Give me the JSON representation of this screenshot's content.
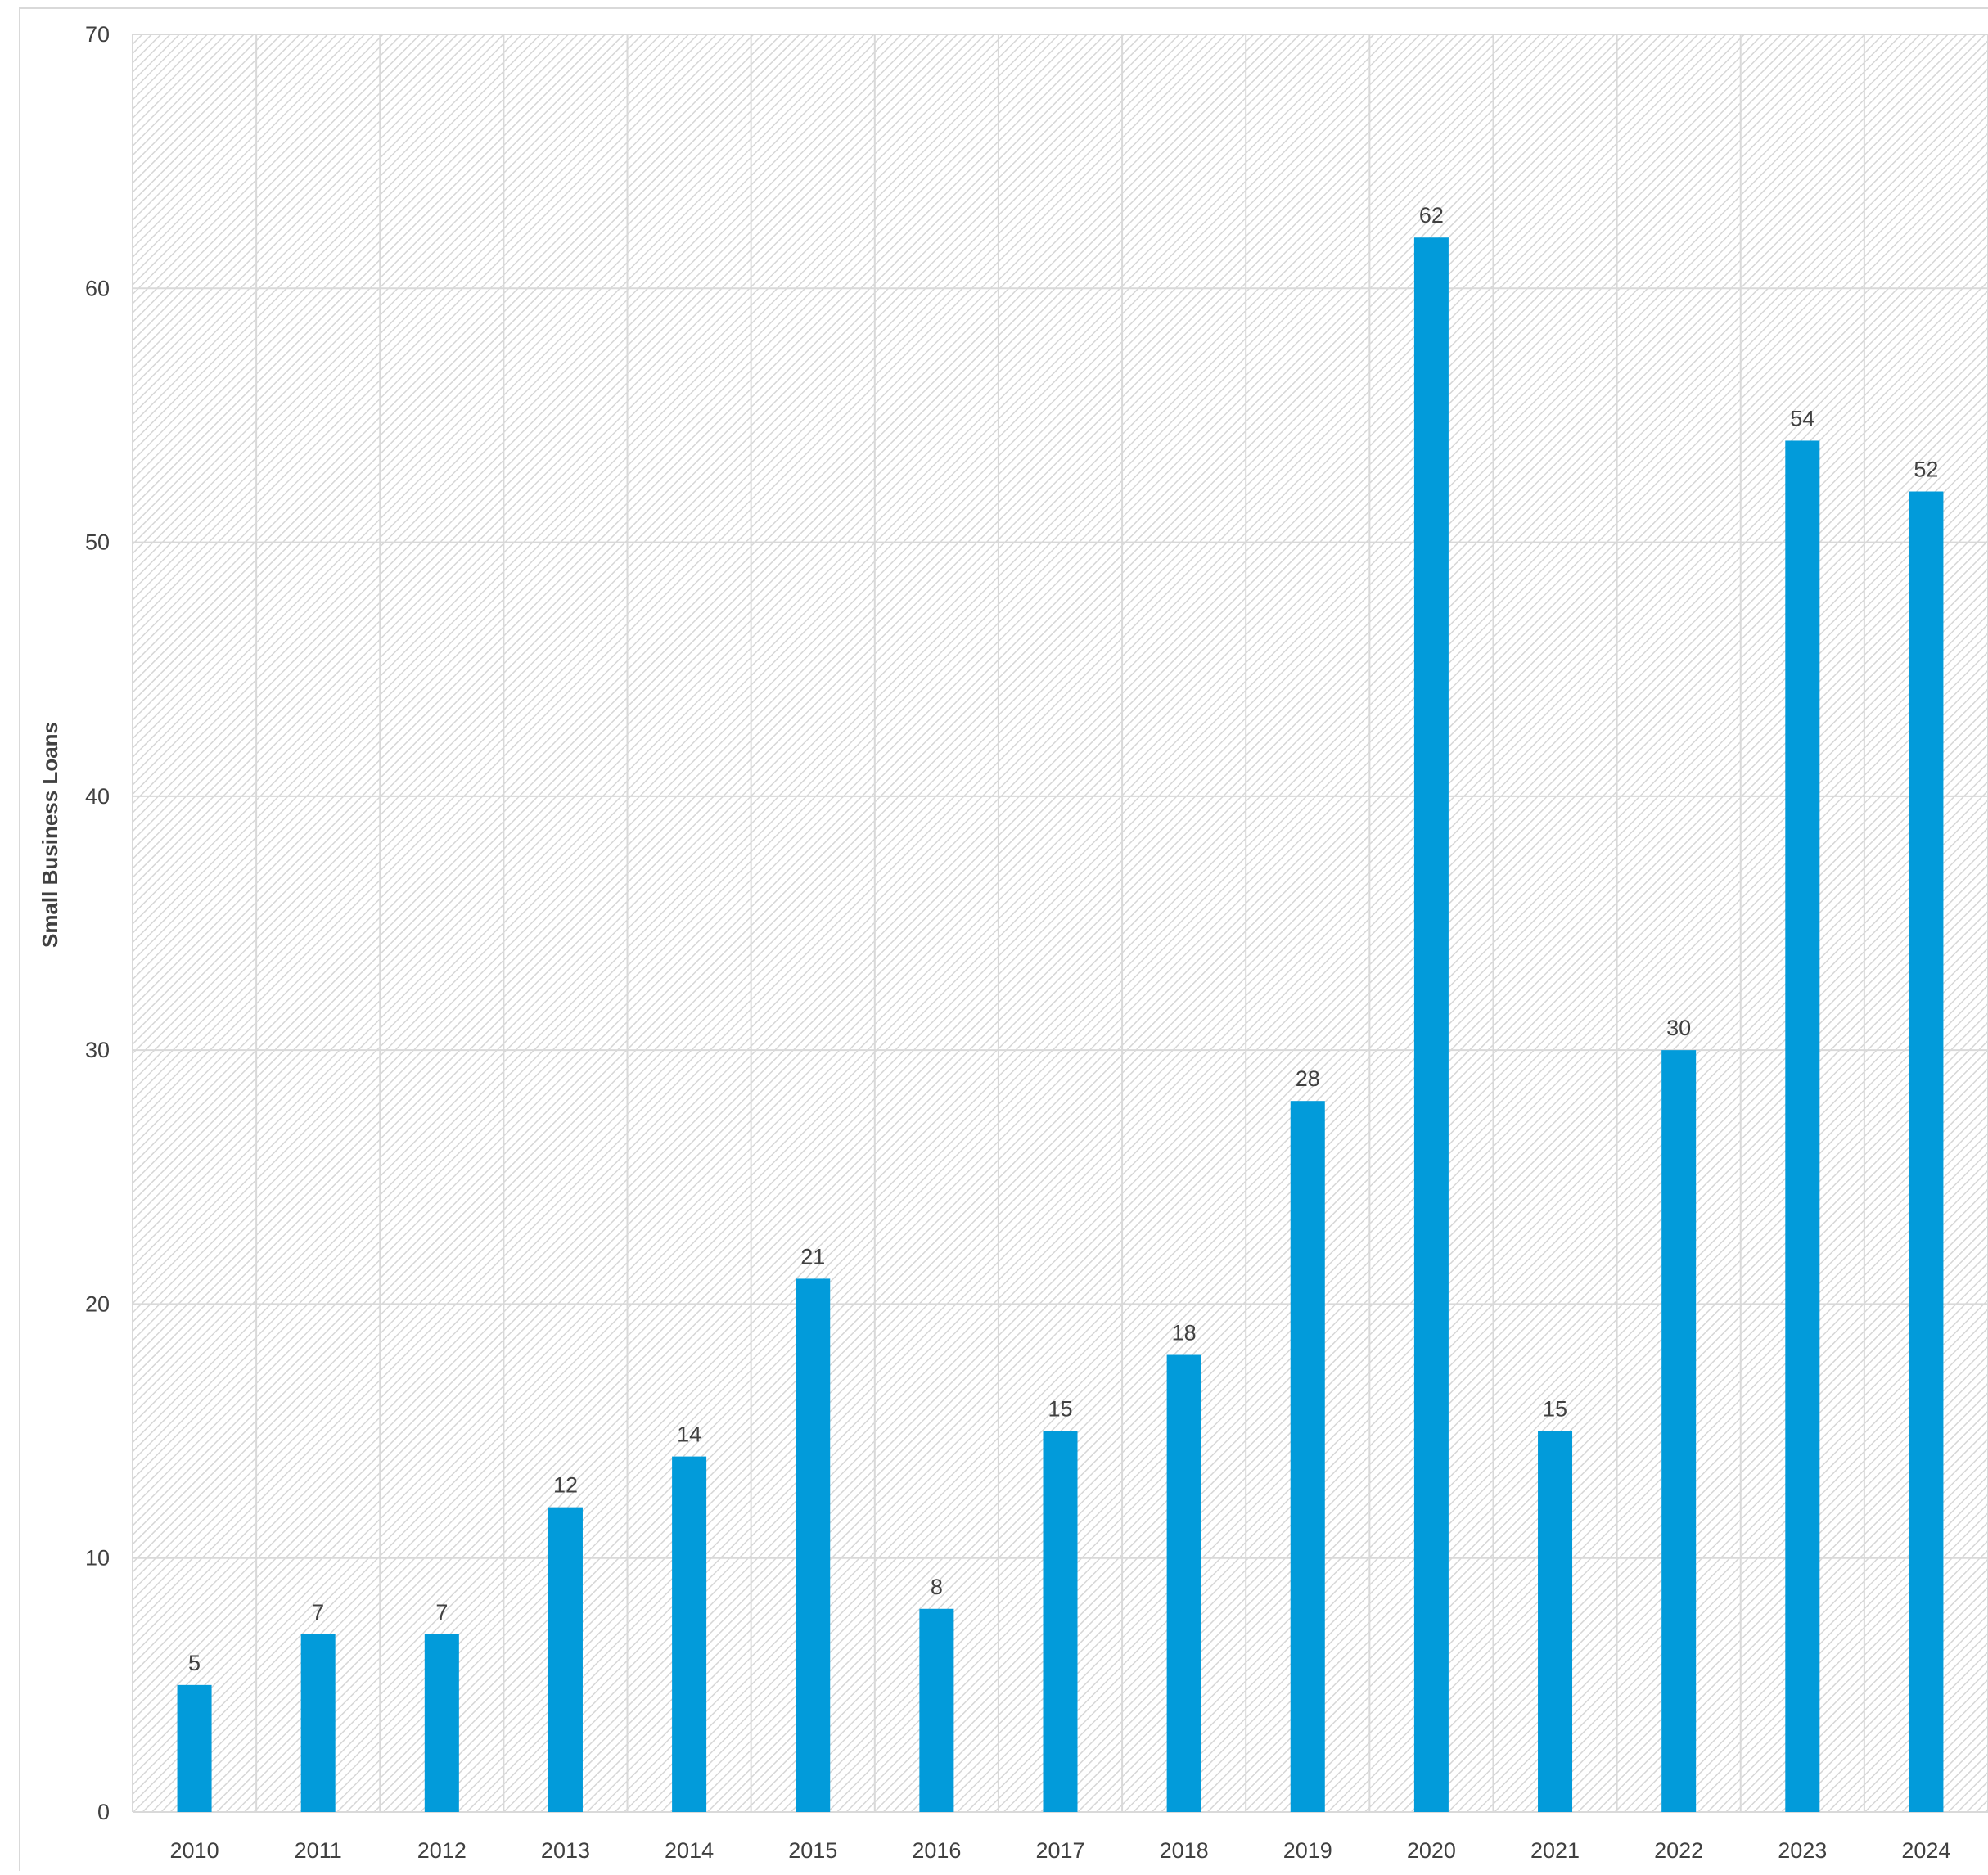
{
  "chart_data": {
    "type": "bar",
    "title": "",
    "xlabel": "",
    "ylabel": "Small Business Loans",
    "categories": [
      "2010",
      "2011",
      "2012",
      "2013",
      "2014",
      "2015",
      "2016",
      "2017",
      "2018",
      "2019",
      "2020",
      "2021",
      "2022",
      "2023",
      "2024"
    ],
    "values": [
      5,
      7,
      7,
      12,
      14,
      21,
      8,
      15,
      18,
      28,
      62,
      15,
      30,
      54,
      52
    ],
    "ylim": [
      0,
      70
    ],
    "yticks": [
      0,
      10,
      20,
      30,
      40,
      50,
      60,
      70
    ],
    "grid": true,
    "legend": "none",
    "data_labels": true,
    "colors": {
      "bar": "#029BDA",
      "grid": "#D9D9D9",
      "hatch": "#D6D6D6",
      "text": "#404040"
    }
  }
}
